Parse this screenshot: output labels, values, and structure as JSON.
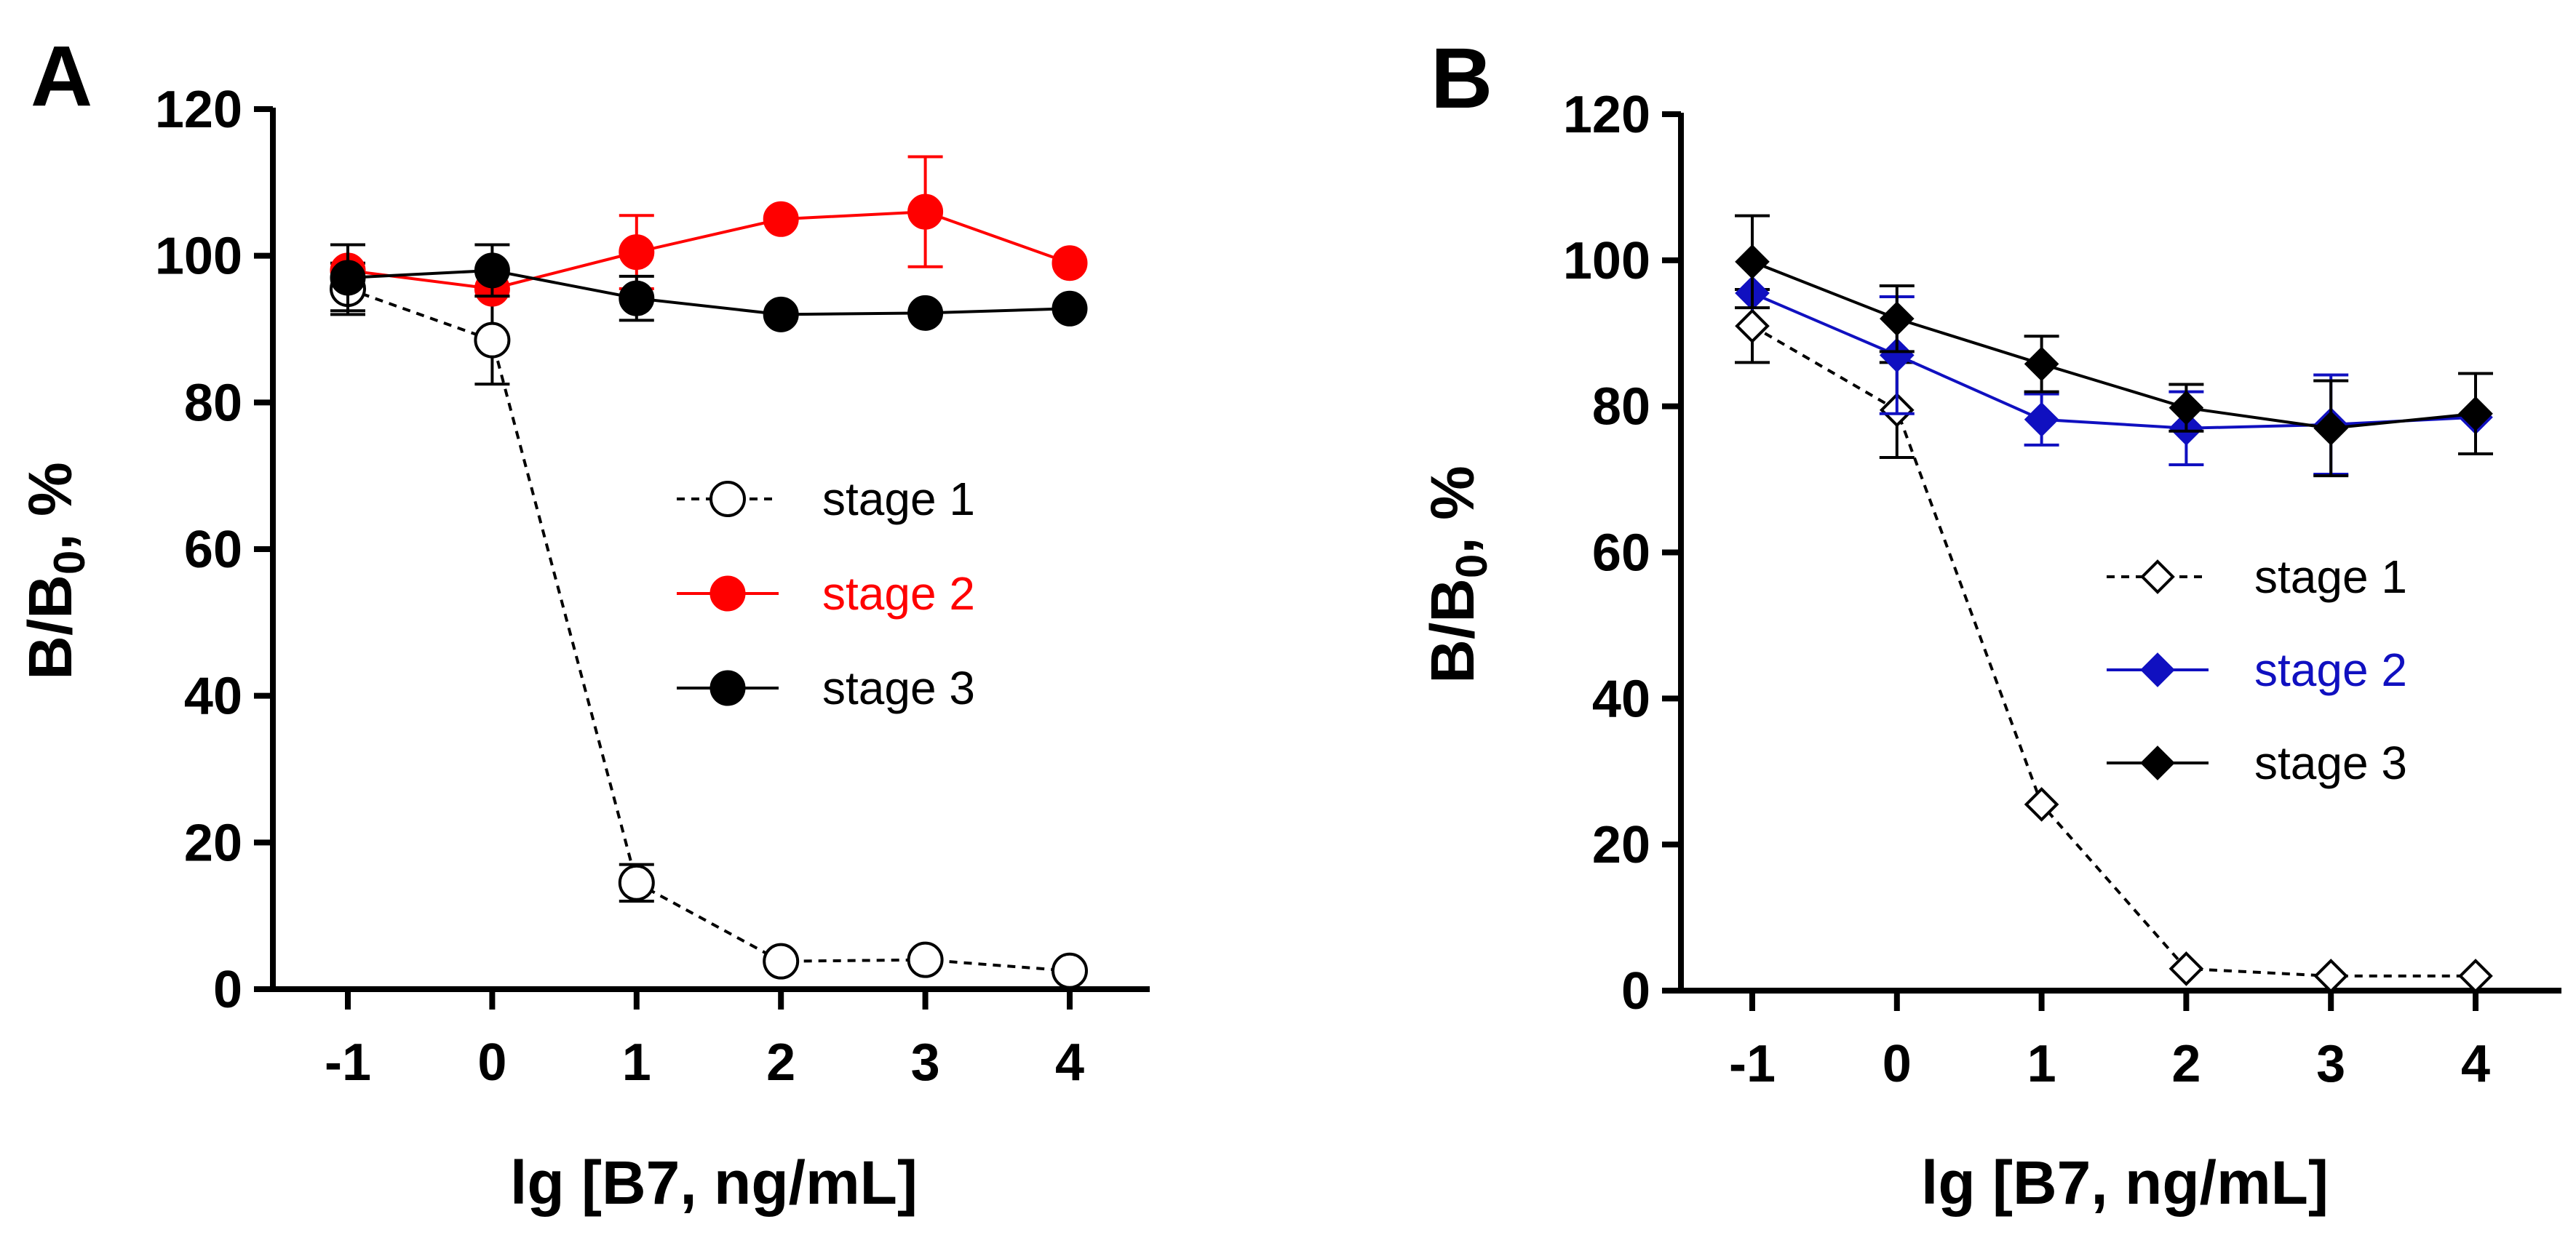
{
  "chart_data": [
    {
      "panel": "A",
      "type": "line",
      "xlabel": "lg [B7, ng/mL]",
      "ylabel_main": "B/B",
      "ylabel_sub": "0",
      "ylabel_suffix": ",  %",
      "ylim": [
        0,
        120
      ],
      "xlim": [
        -1.5,
        4.5
      ],
      "yticks": [
        0,
        20,
        40,
        60,
        80,
        100,
        120
      ],
      "xticks": [
        -1,
        0,
        1,
        2,
        3,
        4
      ],
      "legend_position": "center-right",
      "series": [
        {
          "name": "stage 1",
          "color": "#000000",
          "marker": "circle-open",
          "line": "dashed",
          "x": [
            -1,
            0,
            1,
            2,
            3,
            4
          ],
          "y": [
            95.5,
            88.5,
            14.5,
            3.8,
            4.0,
            2.5
          ],
          "err": [
            3.5,
            6,
            2.5,
            0,
            0,
            0
          ]
        },
        {
          "name": "stage 2",
          "color": "#ff0000",
          "marker": "circle-filled",
          "line": "solid",
          "x": [
            -1,
            0,
            1,
            2,
            3,
            4
          ],
          "y": [
            98,
            95.5,
            100.5,
            105,
            106,
            99
          ],
          "err": [
            0,
            0,
            5,
            0,
            7.5,
            0
          ]
        },
        {
          "name": "stage 3",
          "color": "#000000",
          "marker": "circle-filled",
          "line": "solid",
          "x": [
            -1,
            0,
            1,
            2,
            3,
            4
          ],
          "y": [
            97,
            98,
            94.2,
            92,
            92.2,
            92.8
          ],
          "err": [
            4.5,
            3.5,
            3,
            0,
            0,
            0
          ]
        }
      ]
    },
    {
      "panel": "B",
      "type": "line",
      "xlabel": "lg [B7, ng/mL]",
      "ylabel_main": "B/B",
      "ylabel_sub": "0",
      "ylabel_suffix": ",  %",
      "ylim": [
        0,
        120
      ],
      "xlim": [
        -1.5,
        4.5
      ],
      "yticks": [
        0,
        20,
        40,
        60,
        80,
        100,
        120
      ],
      "xticks": [
        -1,
        0,
        1,
        2,
        3,
        4
      ],
      "legend_position": "center-right",
      "series": [
        {
          "name": "stage 1",
          "color": "#000000",
          "marker": "diamond-open",
          "line": "dashed",
          "x": [
            -1,
            0,
            1,
            2,
            3,
            4
          ],
          "y": [
            91,
            79.5,
            25.5,
            3.0,
            2.0,
            2.0
          ],
          "err": [
            5,
            6.5,
            0,
            0,
            0,
            0
          ]
        },
        {
          "name": "stage 2",
          "color": "#1010c0",
          "marker": "diamond-filled",
          "line": "solid",
          "x": [
            -1,
            0,
            1,
            2,
            3,
            4
          ],
          "y": [
            95.5,
            87,
            78.2,
            77,
            77.5,
            78.5
          ],
          "err": [
            0,
            8,
            3.5,
            5,
            6.8,
            0
          ]
        },
        {
          "name": "stage 3",
          "color": "#000000",
          "marker": "diamond-filled",
          "line": "solid",
          "x": [
            -1,
            0,
            1,
            2,
            3,
            4
          ],
          "y": [
            99.8,
            92,
            85.8,
            79.8,
            77,
            79
          ],
          "err": [
            6.3,
            4.5,
            3.8,
            3.2,
            6.5,
            5.5
          ]
        }
      ]
    }
  ]
}
